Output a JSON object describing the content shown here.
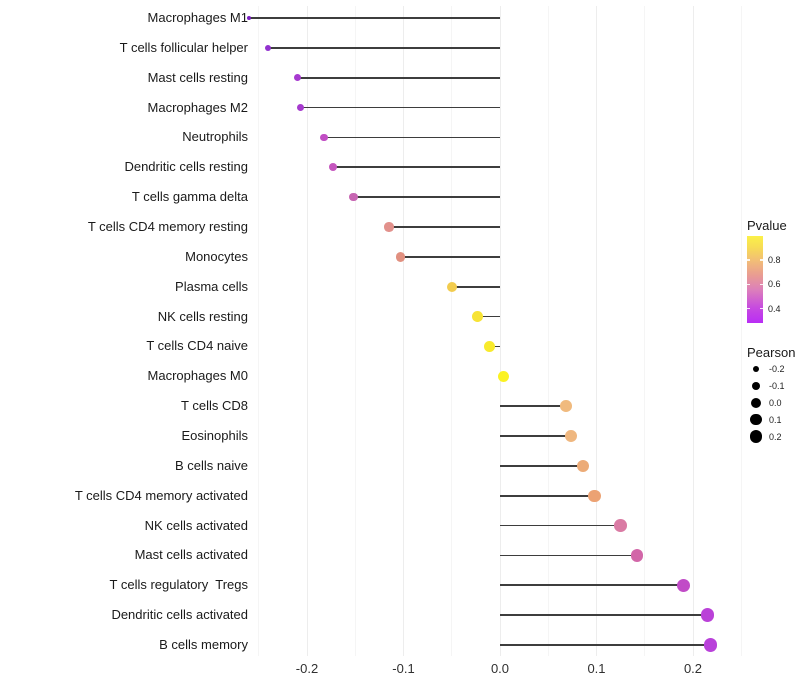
{
  "chart_data": {
    "type": "lollipop",
    "title": "",
    "xlabel": "",
    "ylabel": "",
    "x_axis": {
      "tick_labels": [
        "-0.2",
        "-0.1",
        "0.0",
        "0.1",
        "0.2"
      ],
      "tick_values": [
        -0.2,
        -0.1,
        0.0,
        0.1,
        0.2
      ],
      "xlim": [
        -0.253,
        0.253
      ],
      "grid": "on"
    },
    "points": [
      {
        "label": "Macrophages M1",
        "pearson": -0.26,
        "color": "#7B1FC4"
      },
      {
        "label": "T cells follicular helper",
        "pearson": -0.24,
        "color": "#9232CF"
      },
      {
        "label": "Mast cells resting",
        "pearson": -0.21,
        "color": "#A73AD0"
      },
      {
        "label": "Macrophages M2",
        "pearson": -0.207,
        "color": "#A63ACE"
      },
      {
        "label": "Neutrophils",
        "pearson": -0.182,
        "color": "#C14EC4"
      },
      {
        "label": "Dendritic cells resting",
        "pearson": -0.173,
        "color": "#C556BE"
      },
      {
        "label": "T cells gamma delta",
        "pearson": -0.152,
        "color": "#C765B2"
      },
      {
        "label": "T cells CD4 memory resting",
        "pearson": -0.115,
        "color": "#E2918C"
      },
      {
        "label": "Monocytes",
        "pearson": -0.103,
        "color": "#E19080"
      },
      {
        "label": "Plasma cells",
        "pearson": -0.05,
        "color": "#F2CC4E"
      },
      {
        "label": "NK cells resting",
        "pearson": -0.023,
        "color": "#F7E335"
      },
      {
        "label": "T cells CD4 naive",
        "pearson": -0.011,
        "color": "#F8EA2C"
      },
      {
        "label": "Macrophages M0",
        "pearson": 0.004,
        "color": "#FBF222"
      },
      {
        "label": "T cells CD8",
        "pearson": 0.068,
        "color": "#F0BA7E"
      },
      {
        "label": "Eosinophils",
        "pearson": 0.074,
        "color": "#EFB77F"
      },
      {
        "label": "B cells naive",
        "pearson": 0.086,
        "color": "#ECAB77"
      },
      {
        "label": "T cells CD4 memory activated",
        "pearson": 0.098,
        "color": "#ECA273"
      },
      {
        "label": "NK cells activated",
        "pearson": 0.125,
        "color": "#DA7BA4"
      },
      {
        "label": "Mast cells activated",
        "pearson": 0.142,
        "color": "#D266A8"
      },
      {
        "label": "T cells regulatory  Tregs",
        "pearson": 0.19,
        "color": "#C14BC7"
      },
      {
        "label": "Dendritic cells activated",
        "pearson": 0.215,
        "color": "#BA41D8"
      },
      {
        "label": "B cells memory",
        "pearson": 0.218,
        "color": "#B941DA"
      }
    ],
    "legend_pvalue": {
      "title": "Pvalue",
      "tick_labels": [
        "0.8",
        "0.6",
        "0.4"
      ],
      "tick_values": [
        0.8,
        0.6,
        0.4
      ],
      "range": [
        0.28,
        1.0
      ],
      "gradient_stops": [
        {
          "pos": 0.0,
          "color": "#B92DF5"
        },
        {
          "pos": 0.18,
          "color": "#C74BDF"
        },
        {
          "pos": 0.38,
          "color": "#DC7FBB"
        },
        {
          "pos": 0.55,
          "color": "#E99C92"
        },
        {
          "pos": 0.72,
          "color": "#F2BE76"
        },
        {
          "pos": 0.87,
          "color": "#F7DC55"
        },
        {
          "pos": 1.0,
          "color": "#FBF148"
        }
      ]
    },
    "legend_pearson": {
      "title": "Pearson",
      "labels": [
        "-0.2",
        "-0.1",
        "0.0",
        "0.1",
        "0.2"
      ],
      "values": [
        -0.2,
        -0.1,
        0.0,
        0.1,
        0.2
      ],
      "dot_color": "#000000"
    }
  }
}
